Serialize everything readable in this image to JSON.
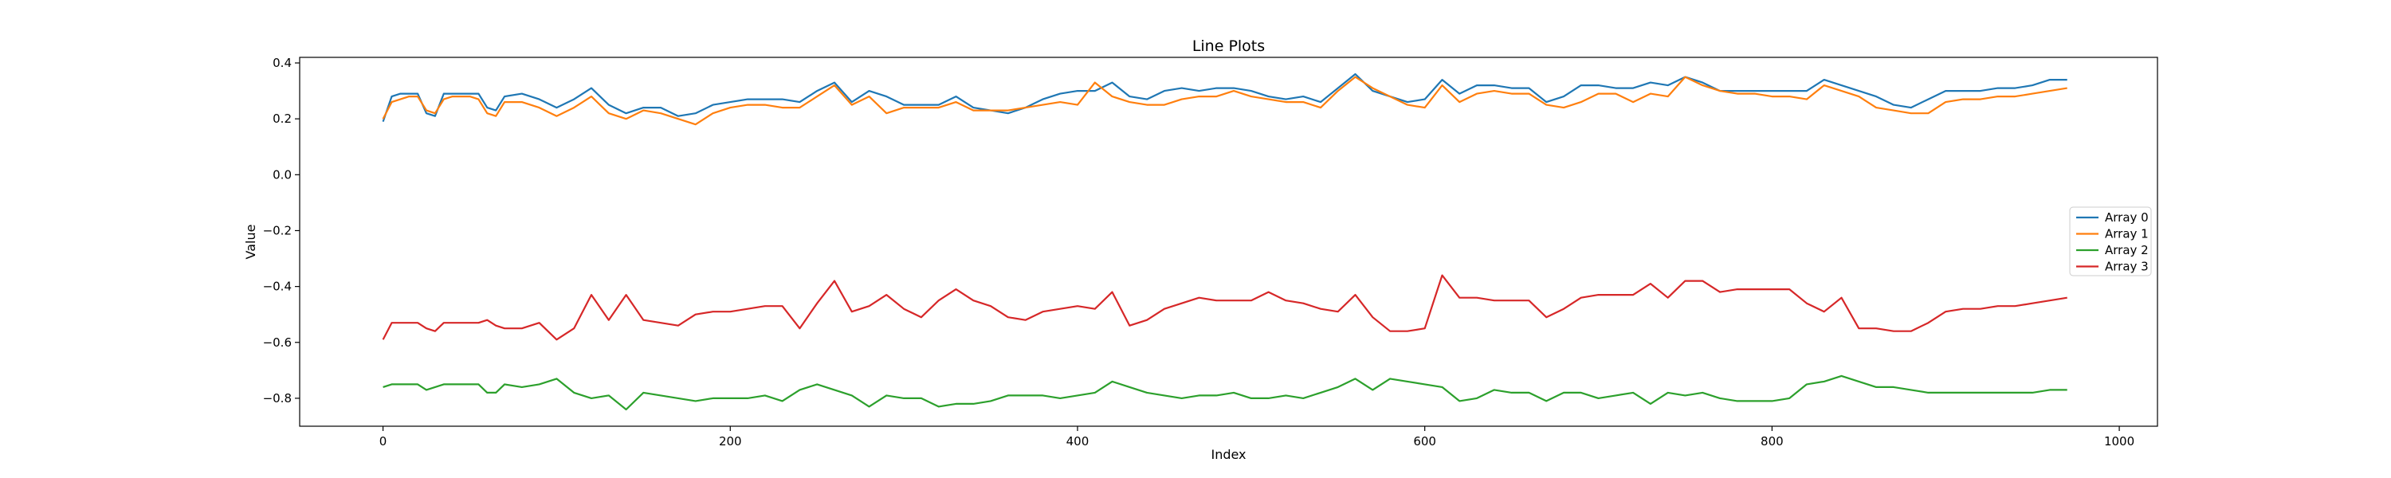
{
  "chart_data": {
    "type": "line",
    "title": "Line Plots",
    "xlabel": "Index",
    "ylabel": "Value",
    "xlim": [
      -48,
      1022
    ],
    "ylim": [
      -0.9,
      0.42
    ],
    "x_ticks": [
      0,
      200,
      400,
      600,
      800,
      1000
    ],
    "y_ticks": [
      0.4,
      0.2,
      0.0,
      -0.2,
      -0.4,
      -0.6,
      -0.8
    ],
    "x_tick_labels": [
      "0",
      "200",
      "400",
      "600",
      "800",
      "1000"
    ],
    "y_tick_labels": [
      "0.4",
      "0.2",
      "0.0",
      "−0.2",
      "−0.4",
      "−0.6",
      "−0.8"
    ],
    "grid": false,
    "legend_position": "center-right",
    "x": [
      0,
      5,
      10,
      15,
      20,
      25,
      30,
      35,
      40,
      45,
      50,
      55,
      60,
      65,
      70,
      80,
      90,
      100,
      110,
      120,
      130,
      140,
      150,
      160,
      170,
      180,
      190,
      200,
      210,
      220,
      230,
      240,
      250,
      260,
      270,
      280,
      290,
      300,
      310,
      320,
      330,
      340,
      350,
      360,
      370,
      380,
      390,
      400,
      410,
      420,
      430,
      440,
      450,
      460,
      470,
      480,
      490,
      500,
      510,
      520,
      530,
      540,
      550,
      560,
      570,
      580,
      590,
      600,
      610,
      620,
      630,
      640,
      650,
      660,
      670,
      680,
      690,
      700,
      710,
      720,
      730,
      740,
      750,
      760,
      770,
      780,
      790,
      800,
      810,
      820,
      830,
      840,
      850,
      860,
      870,
      880,
      890,
      900,
      910,
      920,
      930,
      940,
      950,
      960,
      970
    ],
    "series": [
      {
        "name": "Array 0",
        "color": "#1f77b4",
        "values": [
          0.19,
          0.28,
          0.29,
          0.29,
          0.29,
          0.22,
          0.21,
          0.29,
          0.29,
          0.29,
          0.29,
          0.29,
          0.24,
          0.23,
          0.28,
          0.29,
          0.27,
          0.24,
          0.27,
          0.31,
          0.25,
          0.22,
          0.24,
          0.24,
          0.21,
          0.22,
          0.25,
          0.26,
          0.27,
          0.27,
          0.27,
          0.26,
          0.3,
          0.33,
          0.26,
          0.3,
          0.28,
          0.25,
          0.25,
          0.25,
          0.28,
          0.24,
          0.23,
          0.22,
          0.24,
          0.27,
          0.29,
          0.3,
          0.3,
          0.33,
          0.28,
          0.27,
          0.3,
          0.31,
          0.3,
          0.31,
          0.31,
          0.3,
          0.28,
          0.27,
          0.28,
          0.26,
          0.31,
          0.36,
          0.3,
          0.28,
          0.26,
          0.27,
          0.34,
          0.29,
          0.32,
          0.32,
          0.31,
          0.31,
          0.26,
          0.28,
          0.32,
          0.32,
          0.31,
          0.31,
          0.33,
          0.32,
          0.35,
          0.33,
          0.3,
          0.3,
          0.3,
          0.3,
          0.3,
          0.3,
          0.34,
          0.32,
          0.3,
          0.28,
          0.25,
          0.24,
          0.27,
          0.3,
          0.3,
          0.3,
          0.31,
          0.31,
          0.32,
          0.34,
          0.34
        ]
      },
      {
        "name": "Array 1",
        "color": "#ff7f0e",
        "values": [
          0.2,
          0.26,
          0.27,
          0.28,
          0.28,
          0.23,
          0.22,
          0.27,
          0.28,
          0.28,
          0.28,
          0.27,
          0.22,
          0.21,
          0.26,
          0.26,
          0.24,
          0.21,
          0.24,
          0.28,
          0.22,
          0.2,
          0.23,
          0.22,
          0.2,
          0.18,
          0.22,
          0.24,
          0.25,
          0.25,
          0.24,
          0.24,
          0.28,
          0.32,
          0.25,
          0.28,
          0.22,
          0.24,
          0.24,
          0.24,
          0.26,
          0.23,
          0.23,
          0.23,
          0.24,
          0.25,
          0.26,
          0.25,
          0.33,
          0.28,
          0.26,
          0.25,
          0.25,
          0.27,
          0.28,
          0.28,
          0.3,
          0.28,
          0.27,
          0.26,
          0.26,
          0.24,
          0.3,
          0.35,
          0.31,
          0.28,
          0.25,
          0.24,
          0.32,
          0.26,
          0.29,
          0.3,
          0.29,
          0.29,
          0.25,
          0.24,
          0.26,
          0.29,
          0.29,
          0.26,
          0.29,
          0.28,
          0.35,
          0.32,
          0.3,
          0.29,
          0.29,
          0.28,
          0.28,
          0.27,
          0.32,
          0.3,
          0.28,
          0.24,
          0.23,
          0.22,
          0.22,
          0.26,
          0.27,
          0.27,
          0.28,
          0.28,
          0.29,
          0.3,
          0.31
        ]
      },
      {
        "name": "Array 2",
        "color": "#2ca02c",
        "values": [
          -0.76,
          -0.75,
          -0.75,
          -0.75,
          -0.75,
          -0.77,
          -0.76,
          -0.75,
          -0.75,
          -0.75,
          -0.75,
          -0.75,
          -0.78,
          -0.78,
          -0.75,
          -0.76,
          -0.75,
          -0.73,
          -0.78,
          -0.8,
          -0.79,
          -0.84,
          -0.78,
          -0.79,
          -0.8,
          -0.81,
          -0.8,
          -0.8,
          -0.8,
          -0.79,
          -0.81,
          -0.77,
          -0.75,
          -0.77,
          -0.79,
          -0.83,
          -0.79,
          -0.8,
          -0.8,
          -0.83,
          -0.82,
          -0.82,
          -0.81,
          -0.79,
          -0.79,
          -0.79,
          -0.8,
          -0.79,
          -0.78,
          -0.74,
          -0.76,
          -0.78,
          -0.79,
          -0.8,
          -0.79,
          -0.79,
          -0.78,
          -0.8,
          -0.8,
          -0.79,
          -0.8,
          -0.78,
          -0.76,
          -0.73,
          -0.77,
          -0.73,
          -0.74,
          -0.75,
          -0.76,
          -0.81,
          -0.8,
          -0.77,
          -0.78,
          -0.78,
          -0.81,
          -0.78,
          -0.78,
          -0.8,
          -0.79,
          -0.78,
          -0.82,
          -0.78,
          -0.79,
          -0.78,
          -0.8,
          -0.81,
          -0.81,
          -0.81,
          -0.8,
          -0.75,
          -0.74,
          -0.72,
          -0.74,
          -0.76,
          -0.76,
          -0.77,
          -0.78,
          -0.78,
          -0.78,
          -0.78,
          -0.78,
          -0.78,
          -0.78,
          -0.77,
          -0.77
        ]
      },
      {
        "name": "Array 3",
        "color": "#d62728",
        "values": [
          -0.59,
          -0.53,
          -0.53,
          -0.53,
          -0.53,
          -0.55,
          -0.56,
          -0.53,
          -0.53,
          -0.53,
          -0.53,
          -0.53,
          -0.52,
          -0.54,
          -0.55,
          -0.55,
          -0.53,
          -0.59,
          -0.55,
          -0.43,
          -0.52,
          -0.43,
          -0.52,
          -0.53,
          -0.54,
          -0.5,
          -0.49,
          -0.49,
          -0.48,
          -0.47,
          -0.47,
          -0.55,
          -0.46,
          -0.38,
          -0.49,
          -0.47,
          -0.43,
          -0.48,
          -0.51,
          -0.45,
          -0.41,
          -0.45,
          -0.47,
          -0.51,
          -0.52,
          -0.49,
          -0.48,
          -0.47,
          -0.48,
          -0.42,
          -0.54,
          -0.52,
          -0.48,
          -0.46,
          -0.44,
          -0.45,
          -0.45,
          -0.45,
          -0.42,
          -0.45,
          -0.46,
          -0.48,
          -0.49,
          -0.43,
          -0.51,
          -0.56,
          -0.56,
          -0.55,
          -0.36,
          -0.44,
          -0.44,
          -0.45,
          -0.45,
          -0.45,
          -0.51,
          -0.48,
          -0.44,
          -0.43,
          -0.43,
          -0.43,
          -0.39,
          -0.44,
          -0.38,
          -0.38,
          -0.42,
          -0.41,
          -0.41,
          -0.41,
          -0.41,
          -0.46,
          -0.49,
          -0.44,
          -0.55,
          -0.55,
          -0.56,
          -0.56,
          -0.53,
          -0.49,
          -0.48,
          -0.48,
          -0.47,
          -0.47,
          -0.46,
          -0.45,
          -0.44
        ]
      }
    ]
  }
}
